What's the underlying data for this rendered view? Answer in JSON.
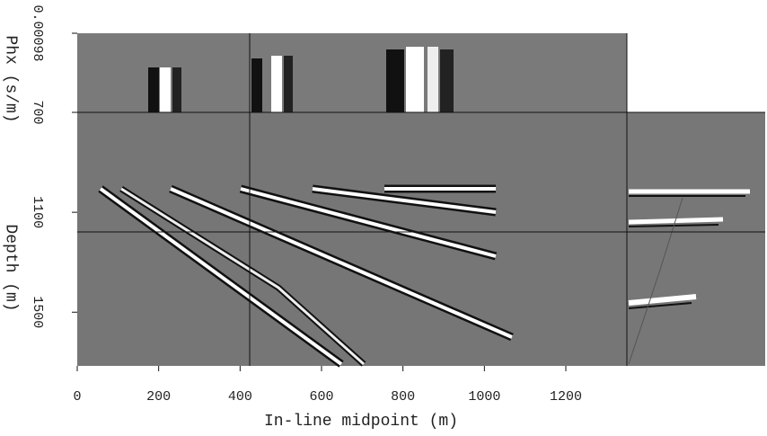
{
  "chart_data": {
    "type": "image",
    "xlabel": "In-line midpoint (m)",
    "xlim": [
      0,
      1350
    ],
    "xticks": [
      0,
      200,
      400,
      600,
      800,
      1000,
      1200
    ],
    "ylabel": "Depth (m)",
    "ylim": [
      700,
      1715
    ],
    "yticks": [
      700,
      1100,
      1500
    ],
    "phx_label": "Phx (s/m)",
    "phx_lim": [
      0,
      0.00098
    ],
    "phx_ticks": [
      0.00098
    ]
  }
}
